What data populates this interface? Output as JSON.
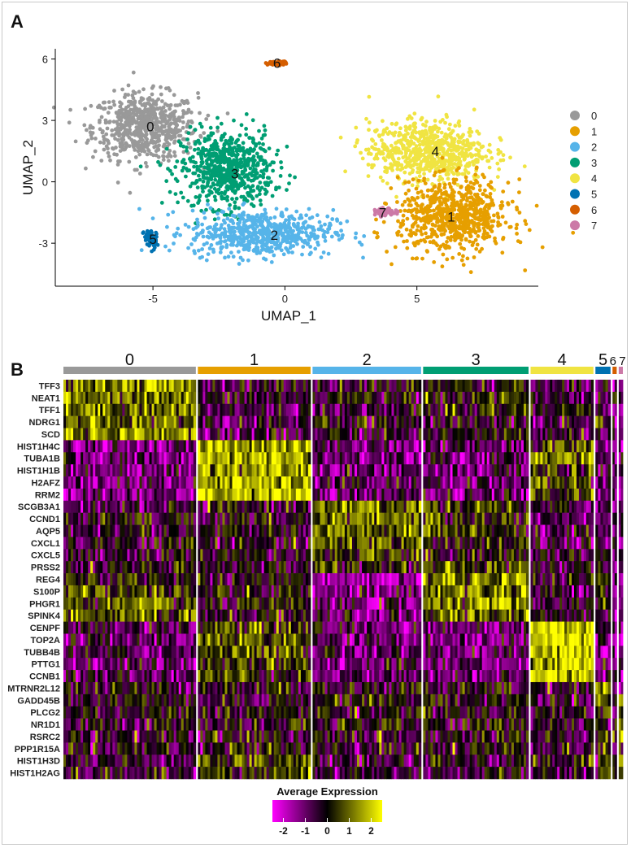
{
  "panels": {
    "a_label": "A",
    "b_label": "B"
  },
  "chart_data": [
    {
      "type": "scatter",
      "title": "",
      "xlabel": "UMAP_1",
      "ylabel": "UMAP_2",
      "xlim": [
        -8.7,
        9.6
      ],
      "ylim": [
        -5.1,
        6.5
      ],
      "xticks": [
        -5,
        0,
        5
      ],
      "yticks": [
        -3,
        0,
        3,
        6
      ],
      "xtick_labels": [
        "-5",
        "0",
        "5"
      ],
      "ytick_labels": [
        "-3",
        "0",
        "3",
        "6"
      ],
      "grid": false,
      "legend_position": "right",
      "clusters": [
        {
          "name": "0",
          "color": "#999999",
          "center": [
            -5.3,
            2.7
          ],
          "spread": [
            1.6,
            1.3
          ],
          "label_at": [
            -5.1,
            2.7
          ]
        },
        {
          "name": "1",
          "color": "#E69F00",
          "center": [
            6.4,
            -1.7
          ],
          "spread": [
            1.7,
            1.4
          ],
          "label_at": [
            6.3,
            -1.7
          ]
        },
        {
          "name": "2",
          "color": "#56B4E9",
          "center": [
            -0.9,
            -2.5
          ],
          "spread": [
            2.2,
            0.9
          ],
          "label_at": [
            -0.4,
            -2.6
          ]
        },
        {
          "name": "3",
          "color": "#009E73",
          "center": [
            -2.2,
            0.6
          ],
          "spread": [
            1.4,
            1.5
          ],
          "label_at": [
            -1.9,
            0.4
          ]
        },
        {
          "name": "4",
          "color": "#F0E442",
          "center": [
            5.4,
            1.5
          ],
          "spread": [
            1.8,
            1.2
          ],
          "label_at": [
            5.7,
            1.5
          ]
        },
        {
          "name": "5",
          "color": "#0072B2",
          "center": [
            -5.1,
            -2.8
          ],
          "spread": [
            0.2,
            0.4
          ],
          "label_at": [
            -5.0,
            -2.8
          ]
        },
        {
          "name": "6",
          "color": "#D55E00",
          "center": [
            -0.3,
            5.8
          ],
          "spread": [
            0.3,
            0.07
          ],
          "label_at": [
            -0.3,
            5.8
          ]
        },
        {
          "name": "7",
          "color": "#CC79A7",
          "center": [
            3.8,
            -1.5
          ],
          "spread": [
            0.3,
            0.15
          ],
          "label_at": [
            3.7,
            -1.5
          ]
        }
      ],
      "legend_entries": [
        "0",
        "1",
        "2",
        "3",
        "4",
        "5",
        "6",
        "7"
      ]
    },
    {
      "type": "heatmap",
      "title": "",
      "cluster_labels": [
        "0",
        "1",
        "2",
        "3",
        "4",
        "5",
        "6",
        "7"
      ],
      "cluster_colors": [
        "#999999",
        "#E69F00",
        "#56B4E9",
        "#009E73",
        "#F0E442",
        "#0072B2",
        "#D55E00",
        "#CC79A7"
      ],
      "cluster_cell_share": [
        0.255,
        0.217,
        0.209,
        0.203,
        0.121,
        0.029,
        0.008,
        0.008
      ],
      "genes": [
        "TFF3",
        "NEAT1",
        "TFF1",
        "NDRG1",
        "SCD",
        "HIST1H4C",
        "TUBA1B",
        "HIST1H1B",
        "H2AFZ",
        "RRM2",
        "SCGB3A1",
        "CCND1",
        "AQP5",
        "CXCL1",
        "CXCL5",
        "PRSS2",
        "REG4",
        "S100P",
        "PHGR1",
        "SPINK4",
        "CENPF",
        "TOP2A",
        "TUBB4B",
        "PTTG1",
        "CCNB1",
        "MTRNR2L12",
        "GADD45B",
        "PLCG2",
        "NR1D1",
        "RSRC2",
        "PPP1R15A",
        "HIST1H3D",
        "HIST1H2AG"
      ],
      "mean_expression": [
        [
          1.4,
          -0.3,
          -0.2,
          -0.2,
          -0.6,
          -0.5,
          -1.0,
          -1.0
        ],
        [
          1.3,
          -0.4,
          0.1,
          0.3,
          -0.4,
          -0.5,
          -1.0,
          -1.0
        ],
        [
          1.2,
          -0.6,
          -0.5,
          0.1,
          -0.6,
          -0.8,
          -1.0,
          -1.0
        ],
        [
          0.9,
          -0.7,
          -0.2,
          -0.3,
          -0.7,
          0.3,
          -1.0,
          -1.0
        ],
        [
          1.5,
          -0.6,
          -0.4,
          -0.1,
          -0.6,
          -1.0,
          -1.0,
          -1.0
        ],
        [
          -1.2,
          1.7,
          -1.0,
          -1.0,
          0.3,
          -1.0,
          -1.0,
          -1.0
        ],
        [
          -1.0,
          1.8,
          -0.9,
          -0.9,
          1.2,
          -1.0,
          -1.0,
          -1.0
        ],
        [
          -1.0,
          1.5,
          -0.8,
          -0.9,
          0.2,
          -1.0,
          -1.0,
          -1.0
        ],
        [
          -1.0,
          1.7,
          -0.8,
          -0.9,
          0.6,
          -1.0,
          -1.0,
          -1.0
        ],
        [
          -1.2,
          1.9,
          -0.9,
          -1.0,
          0.4,
          -1.0,
          -1.0,
          -1.0
        ],
        [
          -0.5,
          -0.2,
          1.0,
          0.3,
          -0.6,
          -1.0,
          -1.0,
          -1.0
        ],
        [
          -0.2,
          -0.3,
          0.9,
          0.4,
          -0.7,
          -0.8,
          -1.0,
          -1.0
        ],
        [
          -0.3,
          -0.1,
          0.8,
          0.5,
          -0.5,
          -0.8,
          -1.0,
          -1.0
        ],
        [
          -0.2,
          -0.5,
          0.9,
          0.2,
          -0.6,
          -0.9,
          -1.0,
          -1.0
        ],
        [
          -0.4,
          -0.3,
          0.4,
          0.2,
          -0.5,
          0.0,
          -1.0,
          -1.0
        ],
        [
          -0.3,
          -0.2,
          0.3,
          0.5,
          -0.2,
          -0.3,
          -1.0,
          -1.0
        ],
        [
          0.2,
          -0.1,
          -1.4,
          1.4,
          -0.3,
          0.4,
          -1.0,
          -1.0
        ],
        [
          0.5,
          -0.2,
          -1.2,
          1.2,
          -0.4,
          0.2,
          -1.0,
          -1.0
        ],
        [
          0.6,
          -0.2,
          -1.1,
          1.3,
          -0.3,
          0.1,
          -1.0,
          -1.0
        ],
        [
          0.7,
          -0.1,
          -1.0,
          1.0,
          -0.3,
          0.4,
          -1.0,
          -1.0
        ],
        [
          -0.9,
          0.6,
          -0.9,
          -0.9,
          2.2,
          -1.0,
          -1.0,
          -1.0
        ],
        [
          -0.9,
          0.9,
          -0.9,
          -1.0,
          2.2,
          -1.0,
          -1.0,
          -1.0
        ],
        [
          -0.8,
          0.6,
          -0.9,
          -0.9,
          2.1,
          -1.0,
          -1.0,
          -1.0
        ],
        [
          -0.8,
          0.7,
          -1.0,
          -1.0,
          2.2,
          -1.0,
          -1.0,
          -1.0
        ],
        [
          -0.7,
          0.5,
          -0.9,
          -0.9,
          2.2,
          -1.0,
          -1.0,
          -1.0
        ],
        [
          -0.2,
          -0.1,
          -0.3,
          -0.3,
          -0.3,
          1.2,
          -0.5,
          -1.0
        ],
        [
          -0.1,
          -0.2,
          0.1,
          0.0,
          -0.3,
          0.6,
          -0.5,
          1.0
        ],
        [
          -0.1,
          -0.1,
          -0.1,
          0.0,
          -0.2,
          0.4,
          -0.5,
          1.0
        ],
        [
          -0.1,
          -0.2,
          -0.2,
          -0.1,
          -0.3,
          0.3,
          -0.5,
          1.2
        ],
        [
          -0.2,
          -0.1,
          -0.2,
          -0.1,
          -0.3,
          0.4,
          -0.5,
          1.0
        ],
        [
          -0.1,
          -0.1,
          -0.1,
          -0.1,
          -0.3,
          0.6,
          -0.5,
          1.2
        ],
        [
          -0.4,
          0.6,
          -0.4,
          -0.4,
          -0.1,
          0.3,
          -0.5,
          1.5
        ],
        [
          -0.4,
          0.4,
          -0.4,
          -0.4,
          -0.1,
          0.2,
          -0.5,
          1.2
        ]
      ],
      "color_scale": {
        "low": "#FF00FF",
        "mid": "#000000",
        "high": "#FFFF00",
        "min": -2.5,
        "max": 2.5
      },
      "colorbar_title": "Average Expression",
      "colorbar_ticks": [
        -2,
        -1,
        0,
        1,
        2
      ],
      "colorbar_tick_labels": [
        "-2",
        "-1",
        "0",
        "1",
        "2"
      ]
    }
  ]
}
